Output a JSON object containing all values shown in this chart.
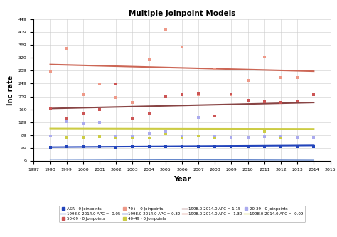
{
  "title": "Multiple Joinpoint Models",
  "xlabel": "Year",
  "ylabel": "Inc rate",
  "xlim": [
    1997,
    2015
  ],
  "ylim": [
    9,
    449
  ],
  "yticks": [
    9,
    49,
    89,
    129,
    169,
    209,
    249,
    289,
    329,
    369,
    409,
    449
  ],
  "xticks": [
    1997,
    1998,
    1999,
    2000,
    2001,
    2002,
    2003,
    2004,
    2005,
    2006,
    2007,
    2008,
    2009,
    2010,
    2011,
    2012,
    2013,
    2014,
    2015
  ],
  "years": [
    1998,
    1999,
    2000,
    2001,
    2002,
    2003,
    2004,
    2005,
    2006,
    2007,
    2008,
    2009,
    2010,
    2011,
    2012,
    2013,
    2014
  ],
  "asr_scatter": [
    52,
    53,
    53,
    54,
    51,
    54,
    55,
    55,
    55,
    54,
    55,
    55,
    55,
    55,
    55,
    53,
    55
  ],
  "asr_line_y1": 52.5,
  "asr_line_y2": 57.6,
  "asr_color": "#2244bb",
  "asr_line_color": "#2244bb",
  "age2039_scatter": [
    88,
    130,
    125,
    128,
    86,
    88,
    95,
    100,
    88,
    145,
    88,
    83,
    83,
    85,
    88,
    83,
    82
  ],
  "age2039_color": "#aaaaee",
  "age2039_line_y1": 15,
  "age2039_line_y2": 12,
  "age2039_line_color": "#6688cc",
  "age4049_scatter": [
    88,
    83,
    82,
    85,
    83,
    82,
    80,
    95,
    83,
    88,
    83,
    83,
    83,
    100,
    83,
    83,
    82
  ],
  "age4049_color": "#cccc44",
  "age4049_line_y1": 110,
  "age4049_line_y2": 108.6,
  "age4049_line_color": "#cccc44",
  "age5069_scatter": [
    172,
    143,
    157,
    169,
    248,
    143,
    158,
    210,
    215,
    220,
    148,
    218,
    198,
    192,
    190,
    195,
    215
  ],
  "age5069_line_y1": 172,
  "age5069_line_y2": 190.4,
  "age5069_color": "#cc5555",
  "age5069_line_color": "#884444",
  "age70plus_scatter": [
    288,
    358,
    215,
    248,
    205,
    190,
    323,
    415,
    363,
    215,
    295,
    215,
    258,
    332,
    268,
    268,
    215
  ],
  "age70plus_line_y1": 308,
  "age70plus_line_y2": 287.2,
  "age70plus_color": "#ee9988",
  "age70plus_line_color": "#cc6655",
  "background_color": "#ffffff",
  "grid_color": "#cccccc"
}
